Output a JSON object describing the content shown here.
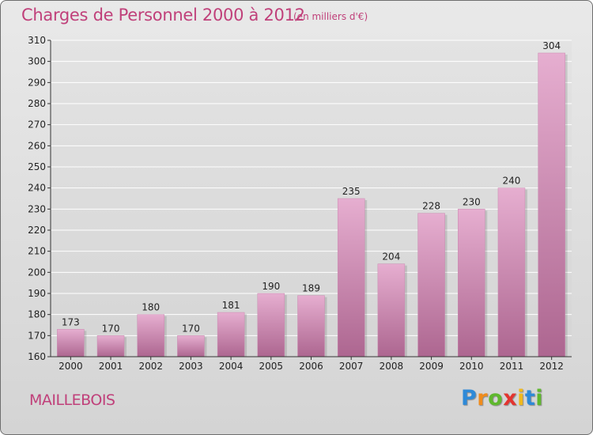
{
  "title": "Charges de Personnel 2000 à 2012",
  "subtitle": "(en milliers d'€)",
  "commune": "MAILLEBOIS",
  "logo": {
    "letters": [
      "P",
      "r",
      "o",
      "x",
      "i",
      "t",
      "i"
    ],
    "colors": [
      "#2e8ad8",
      "#f08c1c",
      "#5fb82e",
      "#e3342f",
      "#f0b81c",
      "#2e8ad8",
      "#5fb82e"
    ]
  },
  "colors": {
    "accent": "#c0407a",
    "bar_light": "#e4a8cb",
    "bar_dark": "#b06690"
  },
  "chart_data": {
    "type": "bar",
    "categories": [
      "2000",
      "2001",
      "2002",
      "2003",
      "2004",
      "2005",
      "2006",
      "2007",
      "2008",
      "2009",
      "2010",
      "2011",
      "2012"
    ],
    "values": [
      173,
      170,
      180,
      170,
      181,
      190,
      189,
      235,
      204,
      228,
      230,
      240,
      304
    ],
    "ylim": [
      160,
      310
    ],
    "yticks": [
      160,
      170,
      180,
      190,
      200,
      210,
      220,
      230,
      240,
      250,
      260,
      270,
      280,
      290,
      300,
      310
    ],
    "grid": true,
    "legend": "none"
  }
}
